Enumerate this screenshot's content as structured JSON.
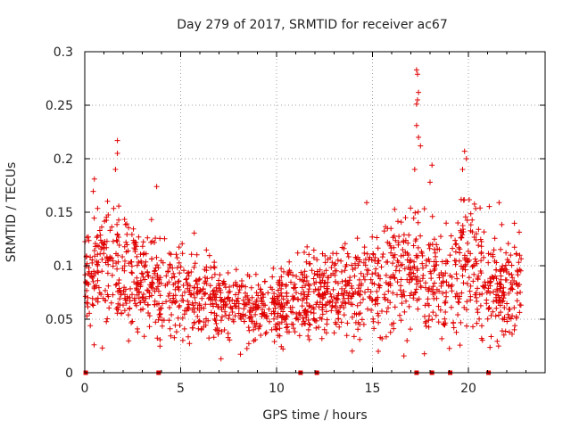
{
  "chart_data": {
    "type": "scatter",
    "title": "Day 279 of 2017, SRMTID for receiver ac67",
    "xlabel": "GPS time / hours",
    "ylabel": "SRMTID / TECUs",
    "xlim": [
      0,
      24
    ],
    "ylim": [
      0,
      0.3
    ],
    "x_ticks": [
      0,
      5,
      10,
      15,
      20
    ],
    "x_tick_labels": [
      "0",
      "5",
      "10",
      "15",
      "20"
    ],
    "y_ticks": [
      0,
      0.05,
      0.1,
      0.15,
      0.2,
      0.25,
      0.3
    ],
    "y_tick_labels": [
      "0",
      "0.05",
      "0.1",
      "0.15",
      "0.2",
      "0.25",
      "0.3"
    ],
    "grid": true,
    "marker": "plus",
    "series_color": "#e00000",
    "density_profile": [
      {
        "x": 0.0,
        "center": 0.09,
        "spread": 0.035
      },
      {
        "x": 1.5,
        "center": 0.1,
        "spread": 0.04
      },
      {
        "x": 3.0,
        "center": 0.085,
        "spread": 0.03
      },
      {
        "x": 5.0,
        "center": 0.075,
        "spread": 0.028
      },
      {
        "x": 7.5,
        "center": 0.065,
        "spread": 0.022
      },
      {
        "x": 9.5,
        "center": 0.06,
        "spread": 0.02
      },
      {
        "x": 11.5,
        "center": 0.07,
        "spread": 0.025
      },
      {
        "x": 14.0,
        "center": 0.075,
        "spread": 0.028
      },
      {
        "x": 16.5,
        "center": 0.1,
        "spread": 0.035
      },
      {
        "x": 18.5,
        "center": 0.09,
        "spread": 0.035
      },
      {
        "x": 20.0,
        "center": 0.1,
        "spread": 0.04
      },
      {
        "x": 22.7,
        "center": 0.075,
        "spread": 0.03
      }
    ],
    "notable_points": [
      {
        "x": 1.7,
        "y": 0.217
      },
      {
        "x": 1.7,
        "y": 0.205
      },
      {
        "x": 1.6,
        "y": 0.19
      },
      {
        "x": 0.5,
        "y": 0.181
      },
      {
        "x": 3.75,
        "y": 0.174
      },
      {
        "x": 17.3,
        "y": 0.283
      },
      {
        "x": 17.35,
        "y": 0.279
      },
      {
        "x": 17.4,
        "y": 0.262
      },
      {
        "x": 17.35,
        "y": 0.255
      },
      {
        "x": 17.3,
        "y": 0.251
      },
      {
        "x": 17.3,
        "y": 0.231
      },
      {
        "x": 17.4,
        "y": 0.22
      },
      {
        "x": 17.5,
        "y": 0.212
      },
      {
        "x": 17.2,
        "y": 0.19
      },
      {
        "x": 18.1,
        "y": 0.194
      },
      {
        "x": 18.0,
        "y": 0.178
      },
      {
        "x": 19.8,
        "y": 0.207
      },
      {
        "x": 19.9,
        "y": 0.2
      },
      {
        "x": 19.7,
        "y": 0.19
      },
      {
        "x": 21.6,
        "y": 0.159
      },
      {
        "x": 14.7,
        "y": 0.159
      },
      {
        "x": 7.1,
        "y": 0.013
      },
      {
        "x": 3.1,
        "y": 0.034
      },
      {
        "x": 16.8,
        "y": 0.03
      },
      {
        "x": 15.3,
        "y": 0.02
      }
    ],
    "gap_markers_x": [
      0.05,
      3.85,
      11.25,
      12.1,
      17.3,
      18.1,
      19.05,
      21.05
    ],
    "time_range": [
      0,
      22.75
    ],
    "sample_count": 1700
  }
}
